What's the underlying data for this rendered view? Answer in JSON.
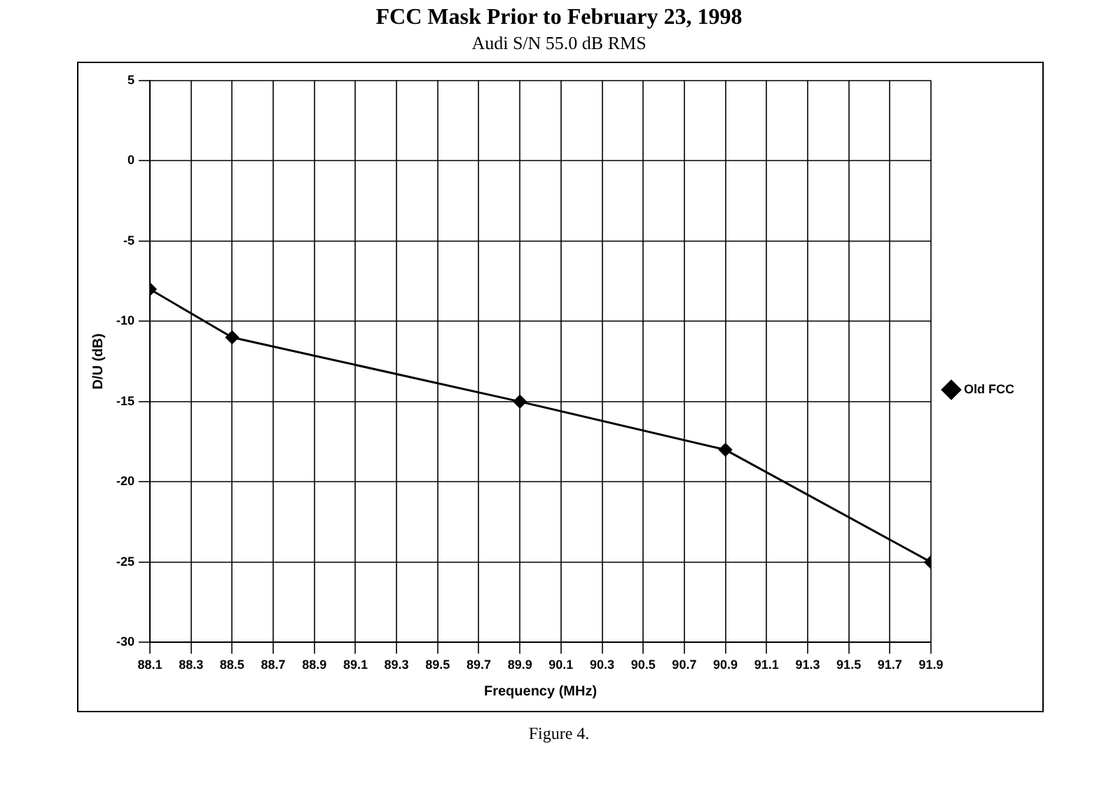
{
  "chart_data": {
    "type": "line",
    "title": "FCC Mask Prior to February 23, 1998",
    "subtitle": "Audi S/N 55.0 dB RMS",
    "xlabel": "Frequency (MHz)",
    "ylabel": "D/U (dB)",
    "series": [
      {
        "name": "Old FCC",
        "color": "#000000",
        "x": [
          88.1,
          88.5,
          89.9,
          90.9,
          91.9
        ],
        "values": [
          -8,
          -11,
          -15,
          -18,
          -25
        ]
      }
    ],
    "xlim": [
      88.1,
      91.9
    ],
    "xticks": [
      88.1,
      88.3,
      88.5,
      88.7,
      88.9,
      89.1,
      89.3,
      89.5,
      89.7,
      89.9,
      90.1,
      90.3,
      90.5,
      90.7,
      90.9,
      91.1,
      91.3,
      91.5,
      91.7,
      91.9
    ],
    "ylim": [
      -30,
      5
    ],
    "yticks": [
      -30,
      -25,
      -20,
      -15,
      -10,
      -5,
      0,
      5
    ],
    "grid": true,
    "legend": "right",
    "marker": "diamond",
    "line_style": "solid",
    "annotations": [
      "Figure 4."
    ]
  }
}
